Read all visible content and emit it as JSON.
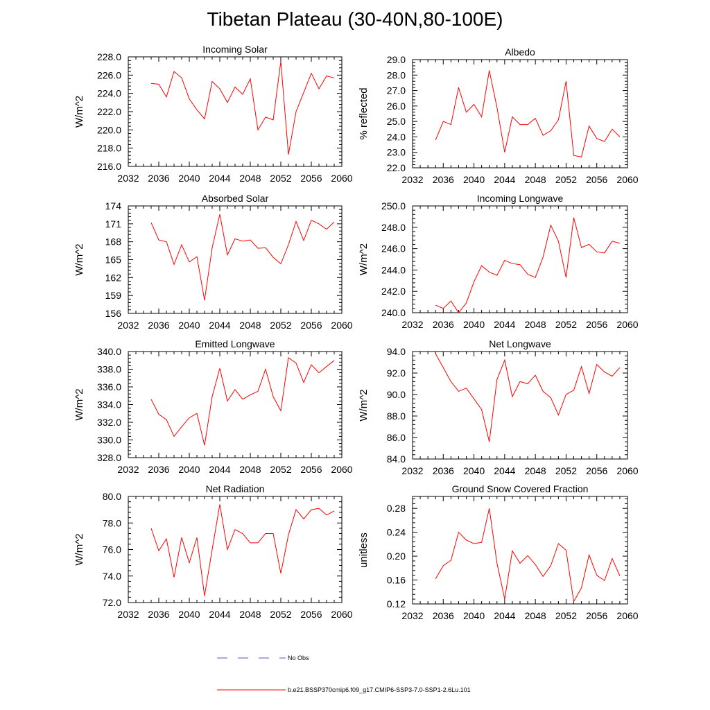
{
  "title": "Tibetan Plateau (30-40N,80-100E)",
  "legend": {
    "no_obs_label": "No Obs",
    "model_label": "b.e21.BSSP370cmip6.f09_g17.CMIP6-SSP3-7.0-SSP1-2.6Lu.101",
    "no_obs_color": "#5555cc",
    "model_color": "#ff0000"
  },
  "chart_data": [
    {
      "type": "line",
      "title": "Incoming Solar",
      "ylabel": "W/m^2",
      "xlim": [
        2032,
        2060
      ],
      "ylim": [
        216.0,
        228.0
      ],
      "xticks": [
        "2032",
        "2036",
        "2040",
        "2044",
        "2048",
        "2052",
        "2056",
        "2060"
      ],
      "yticks": [
        "216.0",
        "218.0",
        "220.0",
        "222.0",
        "224.0",
        "226.0",
        "228.0"
      ],
      "x": [
        2035,
        2036,
        2037,
        2038,
        2039,
        2040,
        2041,
        2042,
        2043,
        2044,
        2045,
        2046,
        2047,
        2048,
        2049,
        2050,
        2051,
        2052,
        2053,
        2054,
        2055,
        2056,
        2057,
        2058,
        2059
      ],
      "values": [
        225.1,
        225.0,
        223.6,
        226.4,
        225.7,
        223.4,
        222.2,
        221.2,
        225.3,
        224.5,
        223.0,
        224.7,
        223.9,
        225.6,
        220.0,
        221.4,
        221.1,
        227.5,
        217.3,
        222.0,
        224.1,
        226.2,
        224.5,
        225.9,
        225.7
      ]
    },
    {
      "type": "line",
      "title": "Albedo",
      "ylabel": "% reflected",
      "xlim": [
        2032,
        2060
      ],
      "ylim": [
        22.0,
        29.0
      ],
      "xticks": [
        "2032",
        "2036",
        "2040",
        "2044",
        "2048",
        "2052",
        "2056",
        "2060"
      ],
      "yticks": [
        "22.0",
        "23.0",
        "24.0",
        "25.0",
        "26.0",
        "27.0",
        "28.0",
        "29.0"
      ],
      "x": [
        2035,
        2036,
        2037,
        2038,
        2039,
        2040,
        2041,
        2042,
        2043,
        2044,
        2045,
        2046,
        2047,
        2048,
        2049,
        2050,
        2051,
        2052,
        2053,
        2054,
        2055,
        2056,
        2057,
        2058,
        2059
      ],
      "values": [
        23.8,
        25.0,
        24.8,
        27.2,
        25.6,
        26.1,
        25.3,
        28.3,
        25.9,
        23.0,
        25.3,
        24.8,
        24.8,
        25.2,
        24.1,
        24.4,
        25.1,
        27.6,
        22.8,
        22.7,
        24.7,
        23.9,
        23.7,
        24.5,
        24.0
      ]
    },
    {
      "type": "line",
      "title": "Absorbed Solar",
      "ylabel": "W/m^2",
      "xlim": [
        2032,
        2060
      ],
      "ylim": [
        156,
        174
      ],
      "xticks": [
        "2032",
        "2036",
        "2040",
        "2044",
        "2048",
        "2052",
        "2056",
        "2060"
      ],
      "yticks": [
        "156",
        "159",
        "162",
        "165",
        "168",
        "171",
        "174"
      ],
      "x": [
        2035,
        2036,
        2037,
        2038,
        2039,
        2040,
        2041,
        2042,
        2043,
        2044,
        2045,
        2046,
        2047,
        2048,
        2049,
        2050,
        2051,
        2052,
        2053,
        2054,
        2055,
        2056,
        2057,
        2058,
        2059
      ],
      "values": [
        171.2,
        168.3,
        168.0,
        164.2,
        167.5,
        164.6,
        165.5,
        158.2,
        167.0,
        172.6,
        165.8,
        168.5,
        168.1,
        168.3,
        166.9,
        167.0,
        165.4,
        164.3,
        167.5,
        171.4,
        168.2,
        171.6,
        171.0,
        170.1,
        171.3
      ]
    },
    {
      "type": "line",
      "title": "Incoming Longwave",
      "ylabel": "W/m^2",
      "xlim": [
        2032,
        2060
      ],
      "ylim": [
        240.0,
        250.0
      ],
      "xticks": [
        "2032",
        "2036",
        "2040",
        "2044",
        "2048",
        "2052",
        "2056",
        "2060"
      ],
      "yticks": [
        "240.0",
        "242.0",
        "244.0",
        "246.0",
        "248.0",
        "250.0"
      ],
      "x": [
        2035,
        2036,
        2037,
        2038,
        2039,
        2040,
        2041,
        2042,
        2043,
        2044,
        2045,
        2046,
        2047,
        2048,
        2049,
        2050,
        2051,
        2052,
        2053,
        2054,
        2055,
        2056,
        2057,
        2058,
        2059
      ],
      "values": [
        240.7,
        240.4,
        241.1,
        240.0,
        240.9,
        242.9,
        244.4,
        243.8,
        243.5,
        244.9,
        244.6,
        244.5,
        243.6,
        243.3,
        245.2,
        248.2,
        246.7,
        243.3,
        248.9,
        246.1,
        246.4,
        245.7,
        245.6,
        246.7,
        246.5
      ]
    },
    {
      "type": "line",
      "title": "Emitted Longwave",
      "ylabel": "W/m^2",
      "xlim": [
        2032,
        2060
      ],
      "ylim": [
        328.0,
        340.0
      ],
      "xticks": [
        "2032",
        "2036",
        "2040",
        "2044",
        "2048",
        "2052",
        "2056",
        "2060"
      ],
      "yticks": [
        "328.0",
        "330.0",
        "332.0",
        "334.0",
        "336.0",
        "338.0",
        "340.0"
      ],
      "x": [
        2035,
        2036,
        2037,
        2038,
        2039,
        2040,
        2041,
        2042,
        2043,
        2044,
        2045,
        2046,
        2047,
        2048,
        2049,
        2050,
        2051,
        2052,
        2053,
        2054,
        2055,
        2056,
        2057,
        2058,
        2059
      ],
      "values": [
        334.6,
        332.9,
        332.3,
        330.4,
        331.5,
        332.5,
        333.0,
        329.4,
        334.9,
        338.1,
        334.4,
        335.7,
        334.6,
        335.1,
        335.5,
        338.0,
        334.9,
        333.3,
        339.3,
        338.7,
        336.5,
        338.5,
        337.6,
        338.3,
        339.0
      ]
    },
    {
      "type": "line",
      "title": "Net Longwave",
      "ylabel": "W/m^2",
      "xlim": [
        2032,
        2060
      ],
      "ylim": [
        84.0,
        94.0
      ],
      "xticks": [
        "2032",
        "2036",
        "2040",
        "2044",
        "2048",
        "2052",
        "2056",
        "2060"
      ],
      "yticks": [
        "84.0",
        "86.0",
        "88.0",
        "90.0",
        "92.0",
        "94.0"
      ],
      "x": [
        2035,
        2036,
        2037,
        2038,
        2039,
        2040,
        2041,
        2042,
        2043,
        2044,
        2045,
        2046,
        2047,
        2048,
        2049,
        2050,
        2051,
        2052,
        2053,
        2054,
        2055,
        2056,
        2057,
        2058,
        2059
      ],
      "values": [
        93.8,
        92.5,
        91.2,
        90.3,
        90.6,
        89.6,
        88.6,
        85.6,
        91.4,
        93.2,
        89.8,
        91.2,
        91.0,
        91.8,
        90.3,
        89.7,
        88.1,
        90.0,
        90.4,
        92.6,
        90.1,
        92.8,
        92.1,
        91.7,
        92.5
      ]
    },
    {
      "type": "line",
      "title": "Net Radiation",
      "ylabel": "W/m^2",
      "xlim": [
        2032,
        2060
      ],
      "ylim": [
        72.0,
        80.0
      ],
      "xticks": [
        "2032",
        "2036",
        "2040",
        "2044",
        "2048",
        "2052",
        "2056",
        "2060"
      ],
      "yticks": [
        "72.0",
        "74.0",
        "76.0",
        "78.0",
        "80.0"
      ],
      "x": [
        2035,
        2036,
        2037,
        2038,
        2039,
        2040,
        2041,
        2042,
        2043,
        2044,
        2045,
        2046,
        2047,
        2048,
        2049,
        2050,
        2051,
        2052,
        2053,
        2054,
        2055,
        2056,
        2057,
        2058,
        2059
      ],
      "values": [
        77.6,
        75.9,
        76.8,
        73.9,
        76.9,
        75.0,
        76.9,
        72.5,
        76.0,
        79.4,
        76.0,
        77.5,
        77.2,
        76.5,
        76.5,
        77.2,
        77.2,
        74.2,
        77.1,
        79.0,
        78.3,
        79.0,
        79.1,
        78.6,
        78.9
      ]
    },
    {
      "type": "line",
      "title": "Ground Snow Covered Fraction",
      "ylabel": "unitless",
      "xlim": [
        2032,
        2060
      ],
      "ylim": [
        0.12,
        0.3
      ],
      "xticks": [
        "2032",
        "2036",
        "2040",
        "2044",
        "2048",
        "2052",
        "2056",
        "2060"
      ],
      "yticks": [
        "0.12",
        "0.16",
        "0.20",
        "0.24",
        "0.28"
      ],
      "x": [
        2035,
        2036,
        2037,
        2038,
        2039,
        2040,
        2041,
        2042,
        2043,
        2044,
        2045,
        2046,
        2047,
        2048,
        2049,
        2050,
        2051,
        2052,
        2053,
        2054,
        2055,
        2056,
        2057,
        2058,
        2059
      ],
      "values": [
        0.162,
        0.184,
        0.193,
        0.24,
        0.227,
        0.221,
        0.223,
        0.28,
        0.188,
        0.128,
        0.209,
        0.188,
        0.201,
        0.186,
        0.166,
        0.184,
        0.221,
        0.21,
        0.124,
        0.147,
        0.202,
        0.168,
        0.159,
        0.196,
        0.167
      ]
    }
  ]
}
